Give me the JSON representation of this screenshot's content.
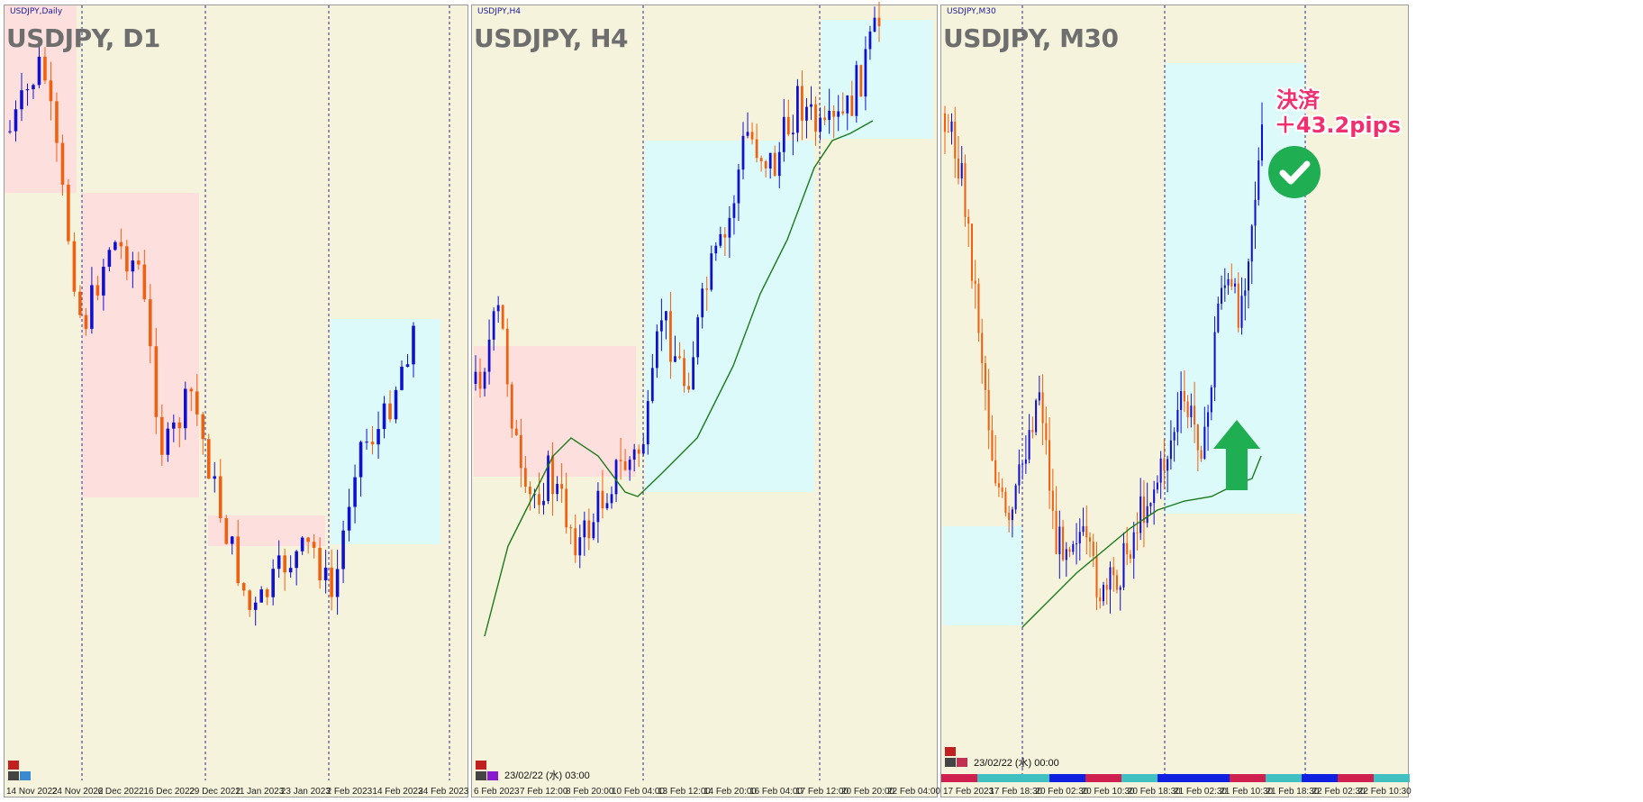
{
  "colors": {
    "background": "#f5f3dc",
    "bull": "#1010d0",
    "bear": "#f06010",
    "ma": "#1a7a1a",
    "zone_sell": "#fde0dd",
    "zone_buy": "#dcfafa",
    "annotation": "#f0306e",
    "check": "#1fae52",
    "arrow": "#1fae52"
  },
  "panels": [
    {
      "label": "USDJPY,Daily",
      "title": "USDJPY, D1",
      "dates": [
        "14 Nov 2022",
        "24 Nov 2022",
        "6 Dec 2022",
        "16 Dec 2022",
        "29 Dec 2022",
        "11 Jan 2023",
        "23 Jan 2023",
        "2 Feb 2023",
        "14 Feb 2023",
        "24 Feb 2023"
      ],
      "stamp": ""
    },
    {
      "label": "USDJPY,H4",
      "title": "USDJPY, H4",
      "dates": [
        "6 Feb 2023",
        "7 Feb 12:00",
        "8 Feb 20:00",
        "10 Feb 04:00",
        "13 Feb 12:00",
        "14 Feb 20:00",
        "16 Feb 04:00",
        "17 Feb 12:00",
        "20 Feb 20:00",
        "22 Feb 04:00"
      ],
      "stamp": "23/02/22 (水) 03:00"
    },
    {
      "label": "USDJPY,M30",
      "title": "USDJPY, M30",
      "dates": [
        "17 Feb 2023",
        "17 Feb 18:30",
        "20 Feb 02:30",
        "20 Feb 10:30",
        "20 Feb 18:30",
        "21 Feb 02:30",
        "21 Feb 10:30",
        "21 Feb 18:30",
        "22 Feb 02:30",
        "22 Feb 10:30"
      ],
      "stamp": "23/02/22 (水) 00:00"
    }
  ],
  "annotation": {
    "line1": "決済",
    "line2": "＋43.2pips",
    "check_icon": "check-circle-icon",
    "arrow_icon": "up-arrow-icon"
  },
  "chart_data": [
    {
      "type": "candlestick",
      "title": "USDJPY, D1",
      "categories": [
        "14 Nov 2022",
        "24 Nov 2022",
        "6 Dec 2022",
        "16 Dec 2022",
        "29 Dec 2022",
        "11 Jan 2023",
        "23 Jan 2023",
        "2 Feb 2023",
        "14 Feb 2023",
        "24 Feb 2023"
      ],
      "trend": "downtrend then uptrend"
    },
    {
      "type": "candlestick",
      "title": "USDJPY, H4",
      "categories": [
        "6 Feb 2023",
        "7 Feb 12:00",
        "8 Feb 20:00",
        "10 Feb 04:00",
        "13 Feb 12:00",
        "14 Feb 20:00",
        "16 Feb 04:00",
        "17 Feb 12:00",
        "20 Feb 20:00",
        "22 Feb 04:00"
      ],
      "trend": "uptrend with moving average"
    },
    {
      "type": "candlestick",
      "title": "USDJPY, M30",
      "categories": [
        "17 Feb 2023",
        "17 Feb 18:30",
        "20 Feb 02:30",
        "20 Feb 10:30",
        "20 Feb 18:30",
        "21 Feb 02:30",
        "21 Feb 10:30",
        "21 Feb 18:30",
        "22 Feb 02:30",
        "22 Feb 10:30"
      ],
      "trend": "drop then strong rally",
      "annotation": "決済 ＋43.2pips"
    }
  ]
}
